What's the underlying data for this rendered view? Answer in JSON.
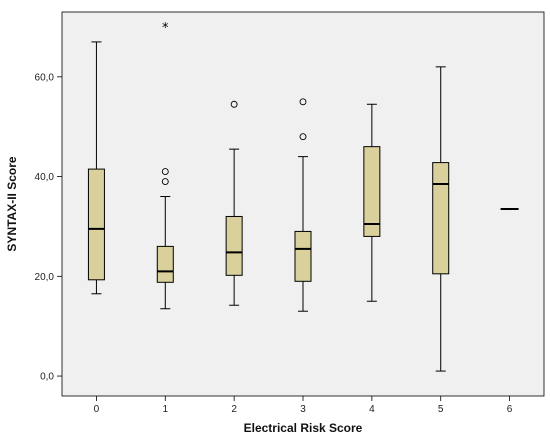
{
  "chart_data": {
    "type": "box",
    "xlabel": "Electrical Risk Score",
    "ylabel": "SYNTAX-II Score",
    "categories": [
      "0",
      "1",
      "2",
      "3",
      "4",
      "5",
      "6"
    ],
    "y_ticks": [
      0,
      20,
      40,
      60
    ],
    "y_tick_labels": [
      "0,0",
      "20,0",
      "40,0",
      "60,0"
    ],
    "ylim": [
      -4,
      73
    ],
    "grid": false,
    "colors": {
      "box_fill": "#d9d09b",
      "plot_bg": "#f0f0f0",
      "line": "#000000"
    },
    "boxes": [
      {
        "category": "0",
        "whisker_low": 16.5,
        "q1": 19.3,
        "median": 29.5,
        "q3": 41.5,
        "whisker_high": 67.0,
        "outliers": [],
        "extremes": []
      },
      {
        "category": "1",
        "whisker_low": 13.5,
        "q1": 18.8,
        "median": 21.0,
        "q3": 26.0,
        "whisker_high": 36.0,
        "outliers": [
          39.0,
          41.0
        ],
        "extremes": [
          70.0
        ]
      },
      {
        "category": "2",
        "whisker_low": 14.2,
        "q1": 20.2,
        "median": 24.8,
        "q3": 32.0,
        "whisker_high": 45.5,
        "outliers": [
          54.5
        ],
        "extremes": []
      },
      {
        "category": "3",
        "whisker_low": 13.0,
        "q1": 19.0,
        "median": 25.5,
        "q3": 29.0,
        "whisker_high": 44.0,
        "outliers": [
          48.0,
          55.0
        ],
        "extremes": []
      },
      {
        "category": "4",
        "whisker_low": 15.0,
        "q1": 28.0,
        "median": 30.5,
        "q3": 46.0,
        "whisker_high": 54.5,
        "outliers": [],
        "extremes": []
      },
      {
        "category": "5",
        "whisker_low": 1.0,
        "q1": 20.5,
        "median": 38.5,
        "q3": 42.8,
        "whisker_high": 62.0,
        "outliers": [],
        "extremes": []
      },
      {
        "category": "6",
        "median": 33.5,
        "single_value": true
      }
    ]
  }
}
